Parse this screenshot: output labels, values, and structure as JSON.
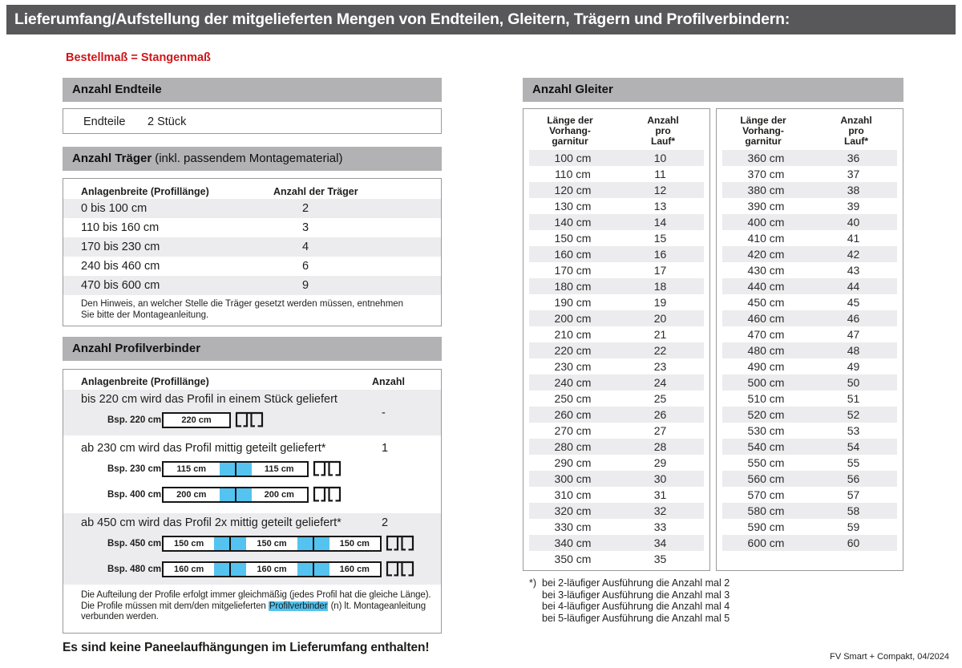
{
  "colors": {
    "title_bar": "#58585b",
    "section_bar": "#b2b2b4",
    "stripe": "#ececee",
    "red": "#cf1519",
    "blue": "#55c3f0"
  },
  "header": {
    "title": "Lieferumfang/Aufstellung der mitgelieferten Mengen von Endteilen, Gleitern, Trägern und Profilverbindern:",
    "subtitle": "Bestellmaß = Stangenmaß"
  },
  "endteile": {
    "heading": "Anzahl Endteile",
    "label": "Endteile",
    "value": "2 Stück"
  },
  "traeger": {
    "heading_bold": "Anzahl Träger",
    "heading_normal": "(inkl. passendem Montagematerial)",
    "col1": "Anlagenbreite (Profillänge)",
    "col2": "Anzahl der Träger",
    "rows": [
      [
        "0 bis 100 cm",
        "2"
      ],
      [
        "110 bis 160 cm",
        "3"
      ],
      [
        "170 bis 230 cm",
        "4"
      ],
      [
        "240 bis 460 cm",
        "6"
      ],
      [
        "470 bis 600 cm",
        "9"
      ]
    ],
    "note": "Den Hinweis, an welcher Stelle die Träger gesetzt werden müssen, entnehmen Sie bitte der Montageanleitung."
  },
  "profilverbinder": {
    "heading": "Anzahl Profilverbinder",
    "col1": "Anlagenbreite (Profillänge)",
    "col2": "Anzahl",
    "rows": [
      {
        "text": "bis 220 cm wird das Profil in einem Stück geliefert",
        "anzahl": "-",
        "examples": [
          {
            "label": "Bsp. 220 cm",
            "segments": [
              "220 cm"
            ]
          }
        ]
      },
      {
        "text": "ab 230 cm wird das Profil mittig geteilt geliefert*",
        "anzahl": "1",
        "examples": [
          {
            "label": "Bsp. 230 cm",
            "segments": [
              "115 cm",
              "115 cm"
            ]
          },
          {
            "label": "Bsp. 400 cm",
            "segments": [
              "200 cm",
              "200 cm"
            ]
          }
        ]
      },
      {
        "text": "ab 450 cm wird das Profil 2x mittig geteilt geliefert*",
        "anzahl": "2",
        "examples": [
          {
            "label": "Bsp. 450 cm",
            "segments": [
              "150 cm",
              "150 cm",
              "150 cm"
            ]
          },
          {
            "label": "Bsp. 480 cm",
            "segments": [
              "160 cm",
              "160 cm",
              "160 cm"
            ]
          }
        ]
      }
    ],
    "note_parts": {
      "before": "Die Aufteilung der Profile erfolgt immer gleichmäßig (jedes Profil hat die gleiche Länge). Die Profile müssen mit dem/den mitgelieferten ",
      "highlight": "Profilverbinder",
      "after": " (n) lt. Montageanleitung verbunden werden."
    }
  },
  "gleiter": {
    "heading": "Anzahl Gleiter",
    "col1_lines": [
      "Länge der",
      "Vorhang-",
      "garnitur"
    ],
    "col2_lines": [
      "Anzahl",
      "pro",
      "Lauf*"
    ],
    "table1": [
      [
        "100 cm",
        "10"
      ],
      [
        "110 cm",
        "11"
      ],
      [
        "120 cm",
        "12"
      ],
      [
        "130 cm",
        "13"
      ],
      [
        "140 cm",
        "14"
      ],
      [
        "150 cm",
        "15"
      ],
      [
        "160 cm",
        "16"
      ],
      [
        "170 cm",
        "17"
      ],
      [
        "180 cm",
        "18"
      ],
      [
        "190 cm",
        "19"
      ],
      [
        "200 cm",
        "20"
      ],
      [
        "210 cm",
        "21"
      ],
      [
        "220 cm",
        "22"
      ],
      [
        "230 cm",
        "23"
      ],
      [
        "240 cm",
        "24"
      ],
      [
        "250 cm",
        "25"
      ],
      [
        "260 cm",
        "26"
      ],
      [
        "270 cm",
        "27"
      ],
      [
        "280 cm",
        "28"
      ],
      [
        "290 cm",
        "29"
      ],
      [
        "300 cm",
        "30"
      ],
      [
        "310 cm",
        "31"
      ],
      [
        "320 cm",
        "32"
      ],
      [
        "330 cm",
        "33"
      ],
      [
        "340 cm",
        "34"
      ],
      [
        "350 cm",
        "35"
      ]
    ],
    "table2": [
      [
        "360 cm",
        "36"
      ],
      [
        "370 cm",
        "37"
      ],
      [
        "380 cm",
        "38"
      ],
      [
        "390 cm",
        "39"
      ],
      [
        "400 cm",
        "40"
      ],
      [
        "410 cm",
        "41"
      ],
      [
        "420 cm",
        "42"
      ],
      [
        "430 cm",
        "43"
      ],
      [
        "440 cm",
        "44"
      ],
      [
        "450 cm",
        "45"
      ],
      [
        "460 cm",
        "46"
      ],
      [
        "470 cm",
        "47"
      ],
      [
        "480 cm",
        "48"
      ],
      [
        "490 cm",
        "49"
      ],
      [
        "500 cm",
        "50"
      ],
      [
        "510 cm",
        "51"
      ],
      [
        "520 cm",
        "52"
      ],
      [
        "530 cm",
        "53"
      ],
      [
        "540 cm",
        "54"
      ],
      [
        "550 cm",
        "55"
      ],
      [
        "560 cm",
        "56"
      ],
      [
        "570 cm",
        "57"
      ],
      [
        "580 cm",
        "58"
      ],
      [
        "590 cm",
        "59"
      ],
      [
        "600 cm",
        "60"
      ]
    ],
    "footnote_marker": "*)",
    "footnotes": [
      "bei 2-läufiger Ausführung die Anzahl mal 2",
      "bei 3-läufiger Ausführung die Anzahl mal 3",
      "bei 4-läufiger Ausführung die Anzahl mal 4",
      "bei 5-läufiger Ausführung die Anzahl mal 5"
    ]
  },
  "bottom_note": "Es sind keine Paneelaufhängungen im Lieferumfang enthalten!",
  "footer": "FV Smart + Compakt, 04/2024"
}
